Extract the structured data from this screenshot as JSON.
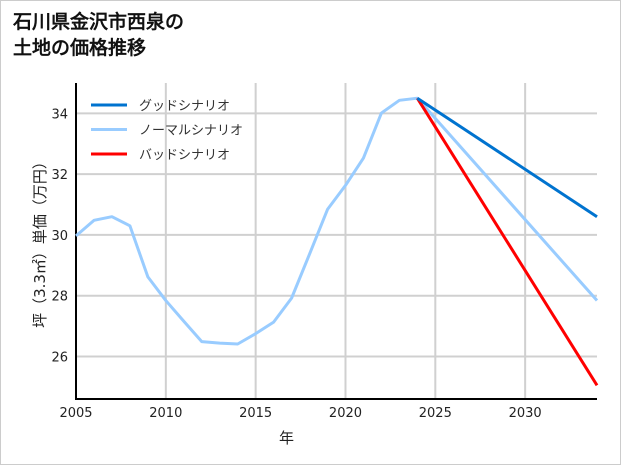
{
  "chart_data": {
    "type": "line",
    "title": [
      "石川県金沢市西泉の",
      "土地の価格推移"
    ],
    "xlabel": "年",
    "ylabel": "坪（3.3㎡）単価（万円）",
    "xlim": [
      2005,
      2034
    ],
    "ylim": [
      24.6,
      35
    ],
    "xticks": [
      2005,
      2010,
      2015,
      2020,
      2025,
      2030
    ],
    "yticks": [
      26,
      28,
      30,
      32,
      34
    ],
    "grid": true,
    "legend_position": "top-left",
    "series": [
      {
        "name": "グッドシナリオ",
        "color": "#0073cf",
        "x": [
          2024,
          2034
        ],
        "y": [
          34.5,
          30.6
        ]
      },
      {
        "name": "ノーマルシナリオ",
        "color": "#99ccff",
        "x": [
          2005,
          2006,
          2007,
          2008,
          2009,
          2010,
          2011,
          2012,
          2013,
          2014,
          2015,
          2016,
          2017,
          2018,
          2019,
          2020,
          2021,
          2022,
          2023,
          2024,
          2034
        ],
        "y": [
          29.97,
          30.48,
          30.6,
          30.3,
          28.62,
          27.84,
          27.16,
          26.49,
          26.44,
          26.41,
          26.75,
          27.13,
          27.92,
          29.37,
          30.84,
          31.63,
          32.53,
          34.01,
          34.43,
          34.5,
          27.84
        ]
      },
      {
        "name": "バッドシナリオ",
        "color": "#ff0000",
        "x": [
          2024,
          2034
        ],
        "y": [
          34.5,
          25.05
        ]
      }
    ]
  }
}
